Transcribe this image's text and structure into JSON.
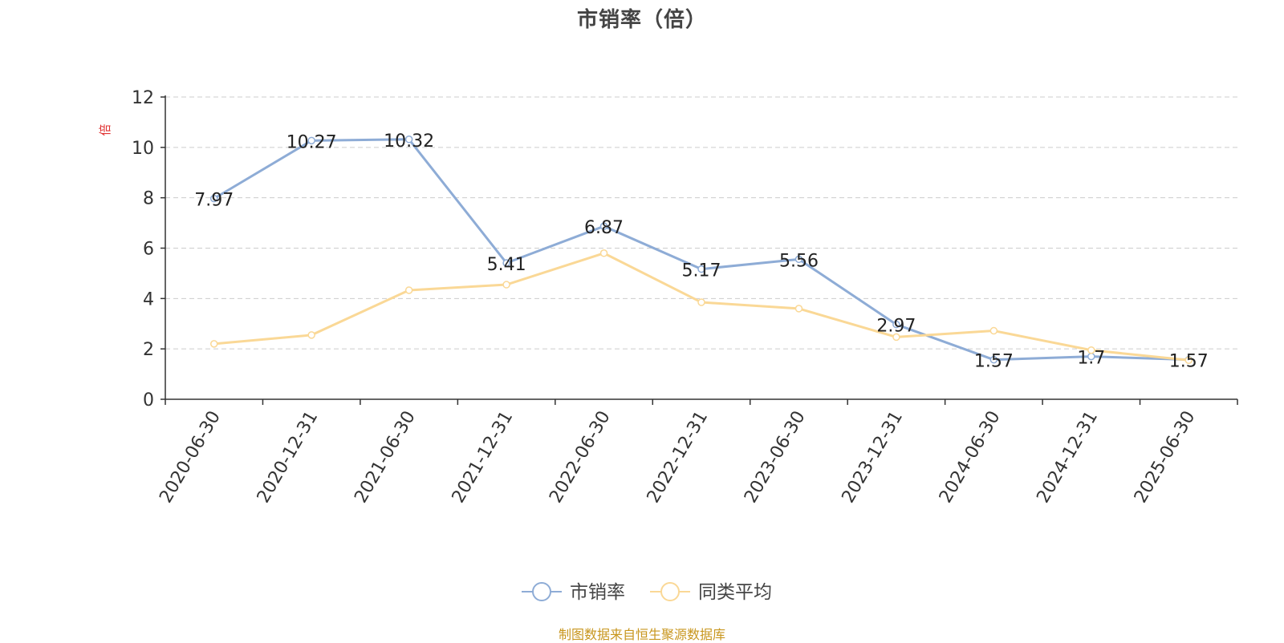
{
  "chart_data": {
    "type": "line",
    "title": "市销率（倍）",
    "ylabel": "倍",
    "xlabel": "",
    "categories": [
      "2020-06-30",
      "2020-12-31",
      "2021-06-30",
      "2021-12-31",
      "2022-06-30",
      "2022-12-31",
      "2023-06-30",
      "2023-12-31",
      "2024-06-30",
      "2024-12-31",
      "2025-06-30"
    ],
    "ylim": [
      0,
      12
    ],
    "yticks": [
      0,
      2,
      4,
      6,
      8,
      10,
      12
    ],
    "grid": true,
    "legend_position": "bottom-center",
    "series": [
      {
        "name": "市销率",
        "color": "#8eacd6",
        "values": [
          7.97,
          10.27,
          10.32,
          5.41,
          6.87,
          5.17,
          5.56,
          2.97,
          1.57,
          1.7,
          1.57
        ],
        "labels": [
          "7.97",
          "10.27",
          "10.32",
          "5.41",
          "6.87",
          "5.17",
          "5.56",
          "2.97",
          "1.57",
          "1.7",
          "1.57"
        ]
      },
      {
        "name": "同类平均",
        "color": "#fad896",
        "values": [
          2.2,
          2.55,
          4.33,
          4.55,
          5.8,
          3.85,
          3.6,
          2.47,
          2.72,
          1.95,
          1.55
        ]
      }
    ]
  },
  "source_note": "制图数据来自恒生聚源数据库"
}
